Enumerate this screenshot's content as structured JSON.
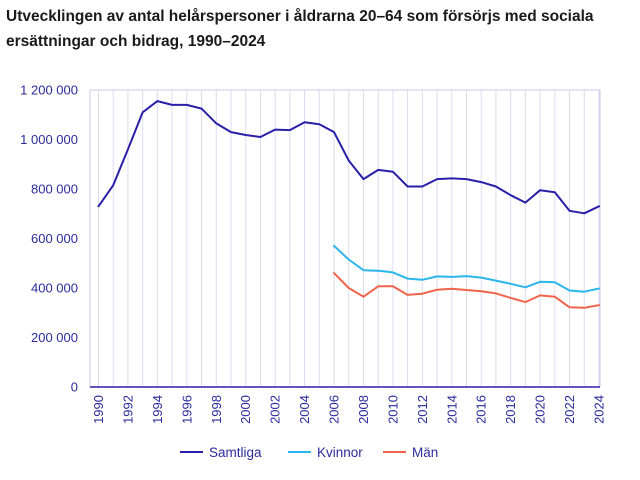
{
  "chart_data": {
    "type": "line",
    "title": "Utvecklingen av antal helårspersoner i åldrarna 20–64 som försörjs med sociala ersättningar och bidrag, 1990–2024",
    "xlabel": "",
    "ylabel": "",
    "ylim": [
      0,
      1200000
    ],
    "yticks": [
      0,
      200000,
      400000,
      600000,
      800000,
      1000000,
      1200000
    ],
    "ytick_labels": [
      "0",
      "200 000",
      "400 000",
      "600 000",
      "800 000",
      "1 000 000",
      "1 200 000"
    ],
    "xlim": [
      1990,
      2024
    ],
    "xticks": [
      "1990",
      "1992",
      "1994",
      "1996",
      "1998",
      "2000",
      "2002",
      "2004",
      "2006",
      "2008",
      "2010",
      "2012",
      "2014",
      "2016",
      "2018",
      "2020",
      "2022",
      "2024"
    ],
    "grid": "vertical",
    "legend_position": "bottom",
    "series": [
      {
        "name": "Samtliga",
        "color": "#2a1fa8",
        "x": [
          1990,
          1991,
          1992,
          1993,
          1994,
          1995,
          1996,
          1997,
          1998,
          1999,
          2000,
          2001,
          2002,
          2003,
          2004,
          2005,
          2006,
          2007,
          2008,
          2009,
          2010,
          2011,
          2012,
          2013,
          2014,
          2015,
          2016,
          2017,
          2018,
          2019,
          2020,
          2021,
          2022,
          2023,
          2024
        ],
        "values": [
          730000,
          815000,
          960000,
          1110000,
          1155000,
          1140000,
          1140000,
          1125000,
          1065000,
          1030000,
          1018000,
          1010000,
          1040000,
          1038000,
          1070000,
          1062000,
          1030000,
          915000,
          840000,
          877000,
          870000,
          810000,
          810000,
          840000,
          843000,
          840000,
          828000,
          810000,
          775000,
          745000,
          795000,
          787000,
          712000,
          702000,
          730000
        ]
      },
      {
        "name": "Kvinnor",
        "color": "#2ab6ea",
        "x": [
          2006,
          2007,
          2008,
          2009,
          2010,
          2011,
          2012,
          2013,
          2014,
          2015,
          2016,
          2017,
          2018,
          2019,
          2020,
          2021,
          2022,
          2023,
          2024
        ],
        "values": [
          570000,
          515000,
          472000,
          470000,
          463000,
          438000,
          433000,
          447000,
          445000,
          448000,
          442000,
          430000,
          417000,
          403000,
          425000,
          423000,
          390000,
          385000,
          398000
        ]
      },
      {
        "name": "Män",
        "color": "#f0644b",
        "x": [
          2006,
          2007,
          2008,
          2009,
          2010,
          2011,
          2012,
          2013,
          2014,
          2015,
          2016,
          2017,
          2018,
          2019,
          2020,
          2021,
          2022,
          2023,
          2024
        ],
        "values": [
          460000,
          400000,
          365000,
          407000,
          407000,
          372000,
          377000,
          393000,
          397000,
          392000,
          387000,
          378000,
          360000,
          343000,
          370000,
          365000,
          322000,
          320000,
          331000
        ]
      }
    ]
  }
}
